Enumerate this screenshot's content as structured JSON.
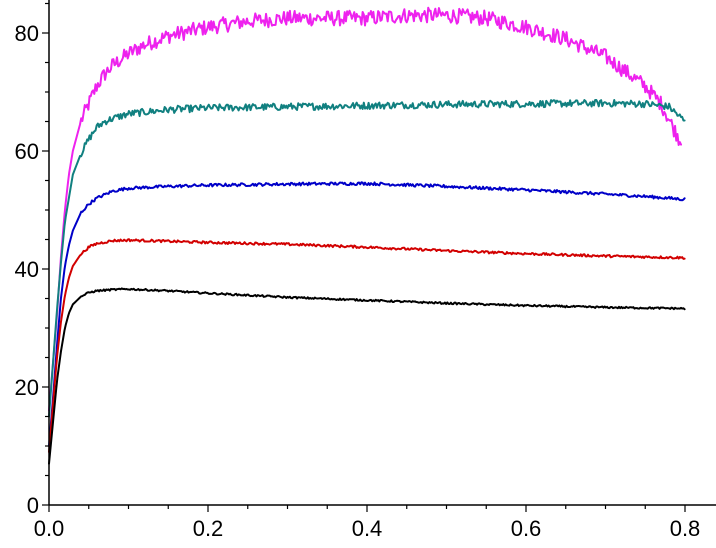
{
  "chart_data": {
    "type": "line",
    "title": "",
    "xlabel": "",
    "ylabel": "",
    "xlim": [
      0,
      0.8
    ],
    "ylim": [
      0,
      85
    ],
    "grid": false,
    "legend": "none",
    "x_major_ticks": [
      "0.0",
      "0.2",
      "0.4",
      "0.6",
      "0.8"
    ],
    "y_major_ticks": [
      "0",
      "20",
      "40",
      "60",
      "80"
    ],
    "series": [
      {
        "color": "#ee22ee",
        "noise": 1.3,
        "points": [
          [
            0.0,
            16
          ],
          [
            0.005,
            24
          ],
          [
            0.01,
            32
          ],
          [
            0.015,
            42
          ],
          [
            0.02,
            50
          ],
          [
            0.025,
            56
          ],
          [
            0.03,
            60
          ],
          [
            0.04,
            65
          ],
          [
            0.05,
            68
          ],
          [
            0.06,
            71
          ],
          [
            0.07,
            73
          ],
          [
            0.08,
            74.5
          ],
          [
            0.1,
            76.5
          ],
          [
            0.12,
            78
          ],
          [
            0.15,
            79.5
          ],
          [
            0.2,
            81
          ],
          [
            0.25,
            82
          ],
          [
            0.3,
            82.5
          ],
          [
            0.35,
            82.5
          ],
          [
            0.4,
            82.5
          ],
          [
            0.45,
            83
          ],
          [
            0.5,
            83
          ],
          [
            0.55,
            82.5
          ],
          [
            0.6,
            81
          ],
          [
            0.65,
            79
          ],
          [
            0.7,
            76
          ],
          [
            0.75,
            71
          ],
          [
            0.77,
            68
          ],
          [
            0.785,
            64
          ],
          [
            0.795,
            61.5
          ]
        ]
      },
      {
        "color": "#118080",
        "noise": 0.6,
        "points": [
          [
            0.0,
            15
          ],
          [
            0.005,
            24
          ],
          [
            0.01,
            33
          ],
          [
            0.015,
            41
          ],
          [
            0.02,
            48
          ],
          [
            0.025,
            52
          ],
          [
            0.03,
            56
          ],
          [
            0.04,
            59.5
          ],
          [
            0.05,
            62
          ],
          [
            0.06,
            64
          ],
          [
            0.07,
            65
          ],
          [
            0.08,
            65.5
          ],
          [
            0.1,
            66.3
          ],
          [
            0.15,
            67
          ],
          [
            0.2,
            67.3
          ],
          [
            0.3,
            67.5
          ],
          [
            0.4,
            67.7
          ],
          [
            0.5,
            67.9
          ],
          [
            0.6,
            68
          ],
          [
            0.7,
            68.1
          ],
          [
            0.75,
            68
          ],
          [
            0.78,
            67.5
          ],
          [
            0.8,
            65
          ]
        ]
      },
      {
        "color": "#0000c8",
        "noise": 0.25,
        "points": [
          [
            0.0,
            10
          ],
          [
            0.005,
            18
          ],
          [
            0.01,
            27
          ],
          [
            0.015,
            35
          ],
          [
            0.02,
            40.5
          ],
          [
            0.025,
            44
          ],
          [
            0.03,
            46.5
          ],
          [
            0.04,
            49.5
          ],
          [
            0.05,
            51
          ],
          [
            0.06,
            52
          ],
          [
            0.08,
            53.2
          ],
          [
            0.1,
            53.7
          ],
          [
            0.15,
            54
          ],
          [
            0.2,
            54.2
          ],
          [
            0.3,
            54.4
          ],
          [
            0.4,
            54.5
          ],
          [
            0.5,
            54
          ],
          [
            0.6,
            53.4
          ],
          [
            0.7,
            52.7
          ],
          [
            0.75,
            52.3
          ],
          [
            0.8,
            51.8
          ]
        ]
      },
      {
        "color": "#d20000",
        "noise": 0.2,
        "points": [
          [
            0.0,
            9
          ],
          [
            0.005,
            17
          ],
          [
            0.01,
            25
          ],
          [
            0.015,
            31
          ],
          [
            0.02,
            35.5
          ],
          [
            0.025,
            38.5
          ],
          [
            0.03,
            40.5
          ],
          [
            0.04,
            42.5
          ],
          [
            0.05,
            43.7
          ],
          [
            0.06,
            44.3
          ],
          [
            0.08,
            44.8
          ],
          [
            0.1,
            44.9
          ],
          [
            0.15,
            44.7
          ],
          [
            0.2,
            44.5
          ],
          [
            0.3,
            44.2
          ],
          [
            0.4,
            43.7
          ],
          [
            0.5,
            43.1
          ],
          [
            0.6,
            42.6
          ],
          [
            0.7,
            42.2
          ],
          [
            0.8,
            41.9
          ]
        ]
      },
      {
        "color": "#000000",
        "noise": 0.15,
        "points": [
          [
            0.0,
            7
          ],
          [
            0.005,
            14
          ],
          [
            0.01,
            21
          ],
          [
            0.015,
            26
          ],
          [
            0.02,
            30
          ],
          [
            0.025,
            32.5
          ],
          [
            0.03,
            34
          ],
          [
            0.04,
            35.3
          ],
          [
            0.05,
            36
          ],
          [
            0.06,
            36.3
          ],
          [
            0.08,
            36.5
          ],
          [
            0.1,
            36.6
          ],
          [
            0.15,
            36.3
          ],
          [
            0.2,
            35.9
          ],
          [
            0.3,
            35.2
          ],
          [
            0.4,
            34.7
          ],
          [
            0.5,
            34.2
          ],
          [
            0.6,
            33.8
          ],
          [
            0.7,
            33.5
          ],
          [
            0.8,
            33.3
          ]
        ]
      }
    ]
  }
}
